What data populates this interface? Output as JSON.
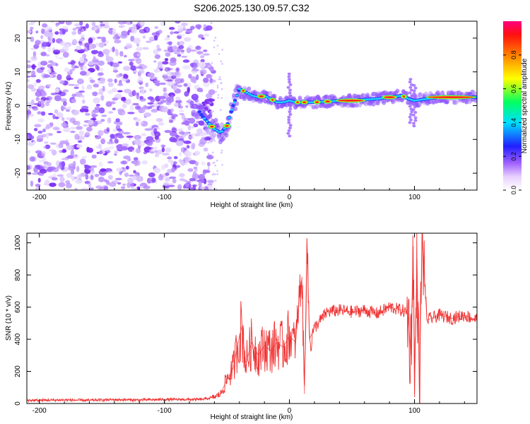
{
  "title": "S206.2025.130.09.57.C32",
  "colors": {
    "snr_line": "#f03030",
    "spectrogram_low": "#a070ff",
    "spectrogram_high": "#ff2020"
  },
  "chart_data": [
    {
      "type": "heatmap",
      "panel": "spectrogram",
      "xlabel": "Height of straight line (km)",
      "ylabel": "Frequency (Hz)",
      "xlim": [
        -210,
        150
      ],
      "ylim": [
        -25,
        25
      ],
      "xticks": [
        -200,
        -100,
        0,
        100
      ],
      "yticks": [
        -20,
        -10,
        0,
        10,
        20
      ],
      "colorbar": {
        "label": "Normalized spectral amplitude",
        "colormap": "rainbow",
        "range": [
          0,
          1
        ],
        "ticks": [
          "0.0",
          "0.2",
          "0.4",
          "0.6",
          "0.8"
        ]
      },
      "ridge": {
        "x": [
          -210,
          -75,
          -70,
          -65,
          -60,
          -55,
          -50,
          -45,
          -40,
          -35,
          -30,
          -25,
          -20,
          -15,
          -10,
          -5,
          0,
          5,
          10,
          20,
          30,
          40,
          50,
          60,
          70,
          80,
          90,
          95,
          100,
          110,
          120,
          130,
          140,
          150
        ],
        "y": [
          0,
          0,
          -3,
          -5,
          -7,
          -8,
          -6,
          0,
          5,
          4,
          3,
          2.5,
          3,
          2,
          1,
          1,
          1.5,
          1,
          1,
          1,
          1.2,
          1.5,
          1.5,
          1.8,
          2,
          2.5,
          3,
          2,
          1.5,
          2,
          2.5,
          2.5,
          2.5,
          2.5
        ]
      }
    },
    {
      "type": "line",
      "panel": "snr",
      "xlabel": "Height of straight line (km)",
      "ylabel": "SNR (10 * v/v)",
      "xlim": [
        -210,
        150
      ],
      "ylim": [
        0,
        1060
      ],
      "xticks": [
        -200,
        -100,
        0,
        100
      ],
      "yticks": [
        0,
        200,
        400,
        600,
        800,
        1000
      ],
      "series": [
        {
          "x": [
            -210,
            -200,
            -180,
            -160,
            -140,
            -120,
            -100,
            -80,
            -70,
            -60,
            -55,
            -50,
            -45,
            -40,
            -38,
            -35,
            -30,
            -25,
            -20,
            -15,
            -10,
            -5,
            0,
            5,
            8,
            10,
            12,
            14,
            16,
            20,
            25,
            30,
            40,
            50,
            60,
            70,
            80,
            90,
            95,
            97,
            99,
            100,
            102,
            104,
            106,
            110,
            120,
            130,
            140,
            150
          ],
          "y": [
            20,
            20,
            22,
            20,
            24,
            22,
            25,
            25,
            25,
            40,
            60,
            150,
            220,
            420,
            480,
            250,
            380,
            300,
            360,
            330,
            380,
            350,
            420,
            380,
            680,
            790,
            60,
            1030,
            400,
            470,
            520,
            570,
            580,
            570,
            580,
            560,
            600,
            580,
            560,
            300,
            980,
            60,
            900,
            30,
            1040,
            520,
            550,
            530,
            550,
            520
          ]
        }
      ]
    }
  ]
}
